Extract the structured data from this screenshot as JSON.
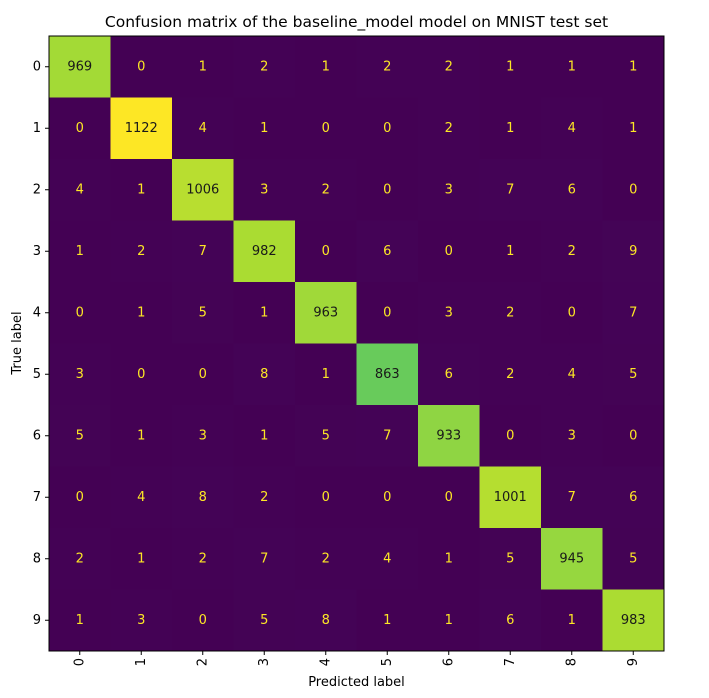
{
  "chart_data": {
    "type": "heatmap",
    "title": "Confusion matrix of the baseline_model model on MNIST test set",
    "xlabel": "Predicted label",
    "ylabel": "True label",
    "x_ticks": [
      "0",
      "1",
      "2",
      "3",
      "4",
      "5",
      "6",
      "7",
      "8",
      "9"
    ],
    "y_ticks": [
      "0",
      "1",
      "2",
      "3",
      "4",
      "5",
      "6",
      "7",
      "8",
      "9"
    ],
    "colormap": "viridis",
    "colorbar": false,
    "grid": false,
    "text_color_light": "#fde725",
    "text_color_dark": "#1a1a1a",
    "matrix": [
      [
        969,
        0,
        1,
        2,
        1,
        2,
        2,
        1,
        1,
        1
      ],
      [
        0,
        1122,
        4,
        1,
        0,
        0,
        2,
        1,
        4,
        1
      ],
      [
        4,
        1,
        1006,
        3,
        2,
        0,
        3,
        7,
        6,
        0
      ],
      [
        1,
        2,
        7,
        982,
        0,
        6,
        0,
        1,
        2,
        9
      ],
      [
        0,
        1,
        5,
        1,
        963,
        0,
        3,
        2,
        0,
        7
      ],
      [
        3,
        0,
        0,
        8,
        1,
        863,
        6,
        2,
        4,
        5
      ],
      [
        5,
        1,
        3,
        1,
        5,
        7,
        933,
        0,
        3,
        0
      ],
      [
        0,
        4,
        8,
        2,
        0,
        0,
        0,
        1001,
        7,
        6
      ],
      [
        2,
        1,
        2,
        7,
        2,
        4,
        1,
        5,
        945,
        5
      ],
      [
        1,
        3,
        0,
        5,
        8,
        1,
        1,
        6,
        1,
        983
      ]
    ]
  }
}
